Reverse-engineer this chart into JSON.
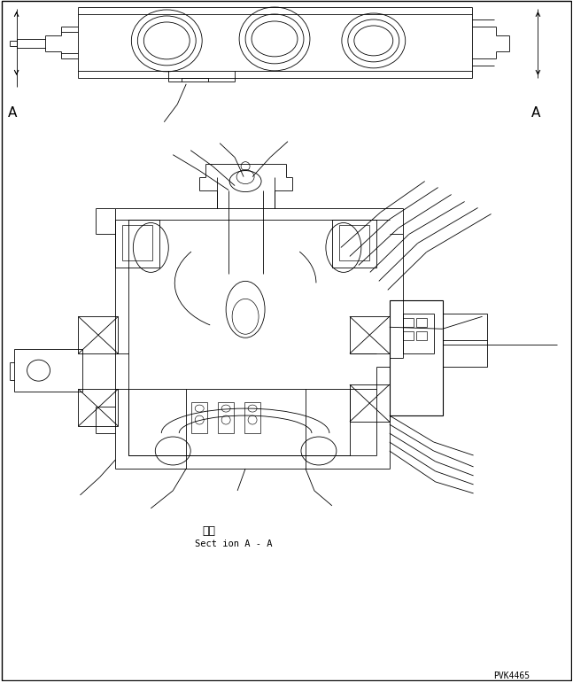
{
  "bg": "#ffffff",
  "lc": "#000000",
  "lw": 0.6,
  "fig_w": 6.47,
  "fig_h": 7.71,
  "dpi": 100,
  "A": "A",
  "jp": "断面",
  "en": "Sect ion A - A",
  "pno": "PVK4465"
}
